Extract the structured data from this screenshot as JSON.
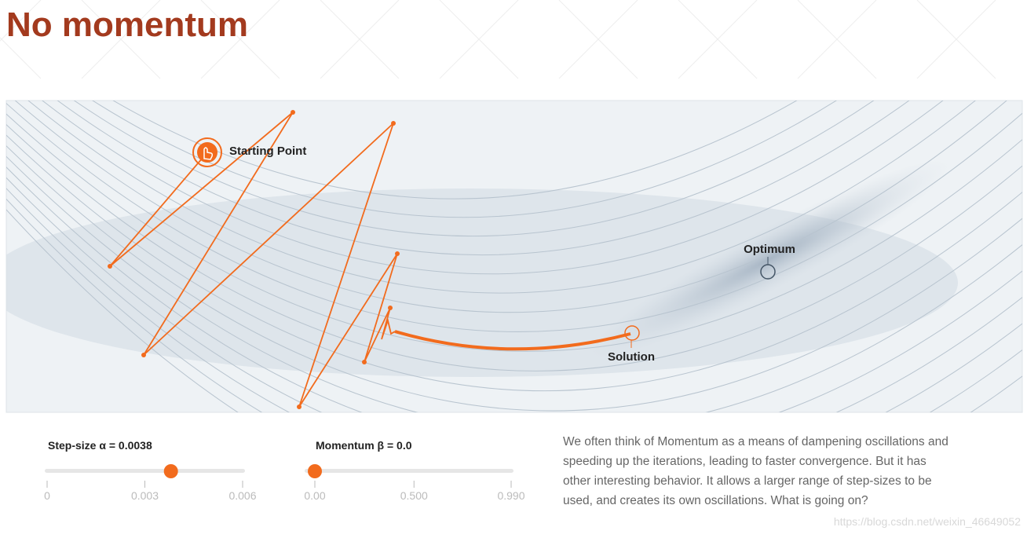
{
  "header": {
    "title": "No momentum"
  },
  "plot": {
    "start_label": "Starting Point",
    "optimum_label": "Optimum",
    "solution_label": "Solution"
  },
  "sliders": [
    {
      "label": "Step-size α = 0.0038",
      "value": 0.0038,
      "range": [
        0,
        0.006
      ],
      "ticks": [
        0,
        0.003,
        0.006
      ]
    },
    {
      "label": "Momentum β = 0.0",
      "value": 0,
      "range": [
        0,
        0.99
      ],
      "ticks": [
        {
          "value": 0,
          "label": "0.00"
        },
        {
          "value": 0.5,
          "label": "0.500"
        },
        {
          "value": 0.99,
          "label": "0.990"
        }
      ]
    }
  ],
  "description": {
    "lines": [
      "We often think of Momentum as a means of dampening oscillations and",
      "speeding up the iterations, leading to faster convergence. But it has",
      "other interesting behavior. It allows a larger range of step-sizes to be",
      "used, and creates its own oscillations. What is going on?"
    ]
  },
  "watermark": "https://blog.csdn.net/weixin_46649052"
}
